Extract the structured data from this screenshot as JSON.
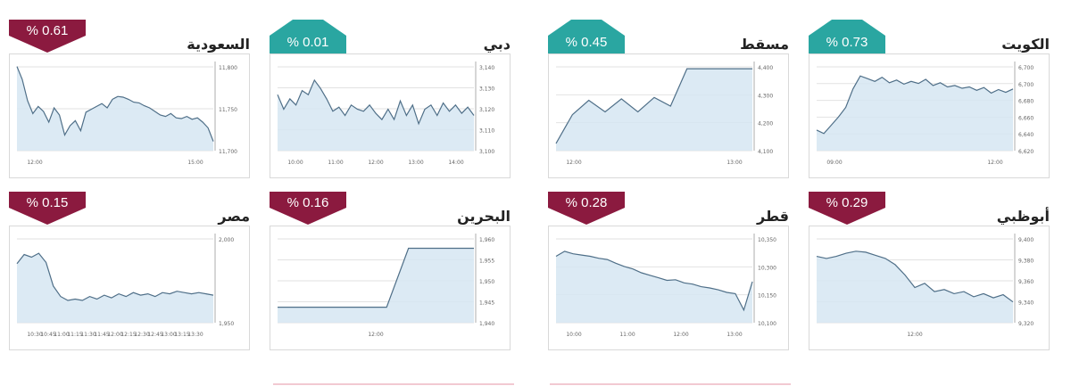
{
  "colors": {
    "down": "#8b1a3f",
    "up": "#2aa6a1",
    "line": "#4f6f88",
    "fill": "#d6e6f2",
    "grid": "#e2e2e2"
  },
  "chart_data": [
    {
      "type": "area",
      "market": "السعودية",
      "badge": "% 0.61",
      "direction": "down",
      "y_ticks": [
        "11,800",
        "11,750",
        "11,700"
      ],
      "ylim": [
        11690,
        11815
      ],
      "x_ticks": [
        "12:00",
        "15:00"
      ],
      "values": [
        11808,
        11790,
        11760,
        11742,
        11752,
        11745,
        11730,
        11750,
        11740,
        11712,
        11725,
        11732,
        11718,
        11744,
        11748,
        11752,
        11756,
        11750,
        11762,
        11766,
        11765,
        11762,
        11758,
        11757,
        11753,
        11750,
        11745,
        11740,
        11738,
        11742,
        11736,
        11735,
        11738,
        11734,
        11736,
        11730,
        11722,
        11703
      ]
    },
    {
      "type": "area",
      "market": "دبي",
      "badge": "% 0.01",
      "direction": "up",
      "y_ticks": [
        "3,140",
        "3,130",
        "3,120",
        "3,110",
        "3,100"
      ],
      "ylim": [
        3099,
        3142
      ],
      "x_ticks": [
        "10:00",
        "11:00",
        "12:00",
        "13:00",
        "14:00"
      ],
      "values": [
        3126,
        3119,
        3124,
        3121,
        3128,
        3126,
        3133,
        3129,
        3124,
        3118,
        3120,
        3116,
        3121,
        3119,
        3118,
        3121,
        3117,
        3114,
        3119,
        3114,
        3123,
        3116,
        3121,
        3112,
        3119,
        3121,
        3116,
        3122,
        3118,
        3121,
        3117,
        3120,
        3116
      ]
    },
    {
      "type": "area",
      "market": "مسقط",
      "badge": "% 0.45",
      "direction": "up",
      "y_ticks": [
        "4,400",
        "4,300",
        "4,200",
        "4,100"
      ],
      "ylim": [
        4095,
        4405
      ],
      "x_ticks": [
        "12:00",
        "13:00"
      ],
      "values": [
        4120,
        4220,
        4270,
        4230,
        4275,
        4230,
        4280,
        4250,
        4380,
        4380,
        4380,
        4380,
        4380
      ]
    },
    {
      "type": "area",
      "market": "الكويت",
      "badge": "% 0.73",
      "direction": "up",
      "y_ticks": [
        "6,700",
        "6,700",
        "6,680",
        "6,660",
        "6,640",
        "6,620"
      ],
      "ylim": [
        6615,
        6745
      ],
      "x_ticks": [
        "09:00",
        "12:00"
      ],
      "values": [
        6645,
        6640,
        6652,
        6664,
        6678,
        6705,
        6724,
        6720,
        6716,
        6722,
        6714,
        6718,
        6712,
        6716,
        6713,
        6719,
        6710,
        6714,
        6708,
        6710,
        6706,
        6708,
        6703,
        6707,
        6699,
        6704,
        6700,
        6705
      ]
    },
    {
      "type": "area",
      "market": "مصر",
      "badge": "% 0.15",
      "direction": "down",
      "y_ticks": [
        "2,000",
        "1,950"
      ],
      "ylim": [
        1940,
        2008
      ],
      "x_ticks": [
        "10:30",
        "10:45",
        "11:00",
        "11:15",
        "11:30",
        "11:45",
        "12:00",
        "12:15",
        "12:30",
        "12:45",
        "13:00",
        "13:15",
        "13:30"
      ],
      "values": [
        1985,
        1992,
        1990,
        1993,
        1986,
        1968,
        1960,
        1957,
        1958,
        1957,
        1960,
        1958,
        1961,
        1959,
        1962,
        1960,
        1963,
        1961,
        1962,
        1960,
        1963,
        1962,
        1964,
        1963,
        1962,
        1963,
        1962,
        1961
      ]
    },
    {
      "type": "area",
      "market": "البحرين",
      "badge": "% 0.16",
      "direction": "down",
      "y_ticks": [
        "1,960",
        "1,955",
        "1,950",
        "1,945",
        "1,940"
      ],
      "ylim": [
        1939,
        1962
      ],
      "x_ticks": [
        "12:00"
      ],
      "values": [
        1943,
        1943,
        1943,
        1943,
        1943,
        1943,
        1958.2,
        1958.2,
        1958.2,
        1958.2
      ]
    },
    {
      "type": "area",
      "market": "قطر",
      "badge": "% 0.28",
      "direction": "down",
      "y_ticks": [
        "10,350",
        "10,300",
        "10,150",
        "10,100"
      ],
      "ylim": [
        10080,
        10362
      ],
      "x_ticks": [
        "10:00",
        "11:00",
        "12:00",
        "13:00"
      ],
      "values": [
        10290,
        10306,
        10298,
        10294,
        10290,
        10284,
        10280,
        10268,
        10258,
        10250,
        10238,
        10230,
        10222,
        10214,
        10216,
        10206,
        10202,
        10194,
        10190,
        10184,
        10176,
        10172,
        10120,
        10210
      ]
    },
    {
      "type": "area",
      "market": "أبوظبي",
      "badge": "% 0.29",
      "direction": "down",
      "y_ticks": [
        "9,400",
        "9,380",
        "9,360",
        "9,340",
        "9,320"
      ],
      "ylim": [
        9316,
        9402
      ],
      "x_ticks": [
        "12:00"
      ],
      "values": [
        9380,
        9378,
        9380,
        9383,
        9385,
        9384,
        9381,
        9378,
        9372,
        9362,
        9350,
        9354,
        9346,
        9348,
        9344,
        9346,
        9341,
        9344,
        9340,
        9343,
        9336
      ]
    }
  ]
}
